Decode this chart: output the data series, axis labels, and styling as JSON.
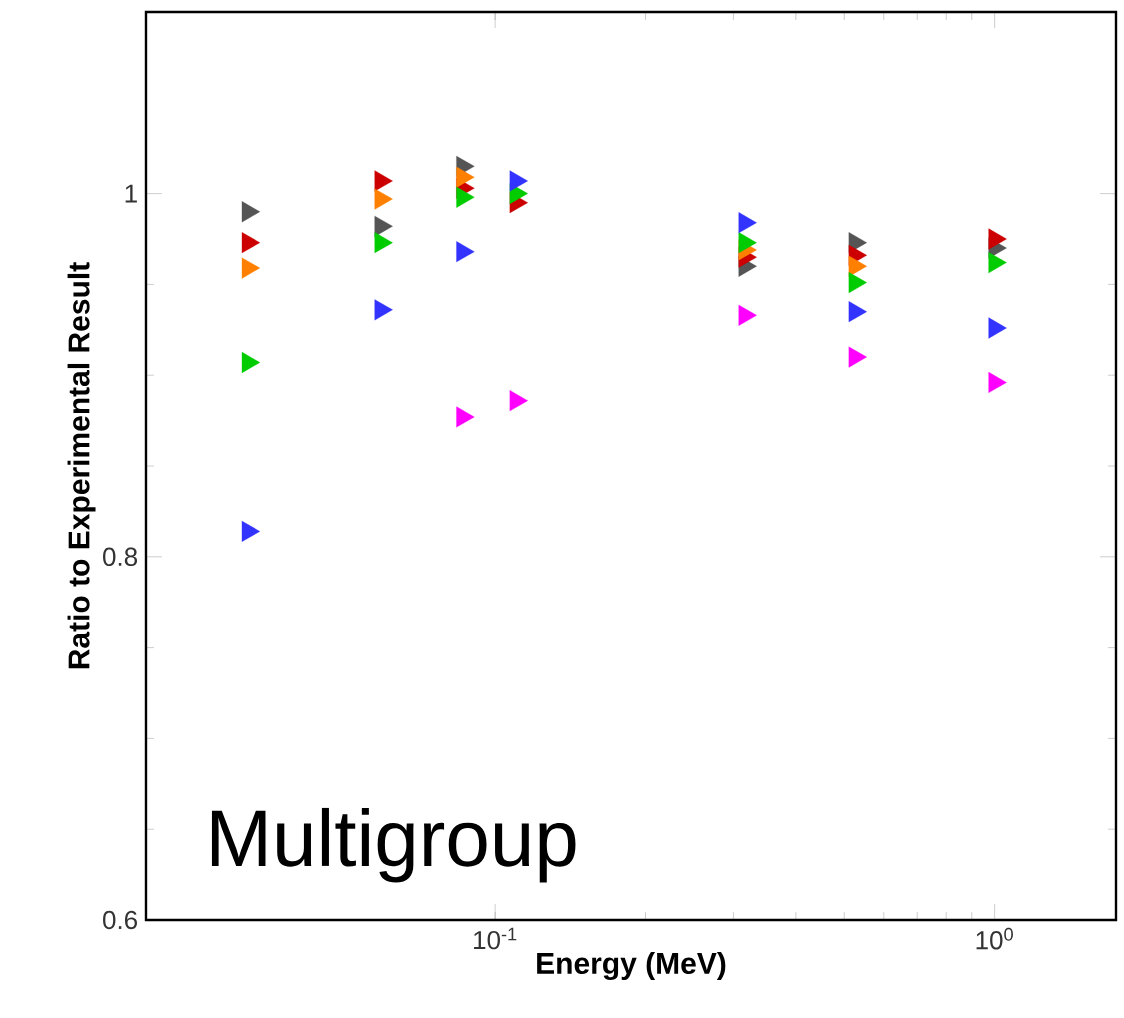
{
  "chart_data": {
    "type": "scatter",
    "xlabel": "Energy (MeV)",
    "ylabel": "Ratio to Experimental Result",
    "annotations": [
      "Multigroup"
    ],
    "log": "x",
    "marker": "triangle",
    "grid": false,
    "x": [
      0.032,
      0.059,
      0.086,
      0.11,
      0.316,
      0.525,
      1.0
    ],
    "xlim": [
      0.02,
      1.75
    ],
    "ylim": [
      0.6,
      1.1
    ],
    "xticks": [
      {
        "value": 0.1,
        "label": "10$^{-1}$"
      },
      {
        "value": 1,
        "label": "10$^{0}$"
      }
    ],
    "yticks": [
      0.6,
      0.8,
      1
    ],
    "series": [
      {
        "color": "#555555",
        "values": [
          0.99,
          0.982,
          1.015,
          null,
          0.96,
          0.973,
          0.97
        ]
      },
      {
        "color": "#cc0000",
        "values": [
          0.973,
          1.007,
          1.003,
          0.995,
          0.965,
          0.966,
          0.975
        ]
      },
      {
        "color": "#ff8000",
        "values": [
          0.959,
          0.997,
          1.009,
          null,
          0.969,
          0.96,
          null
        ]
      },
      {
        "color": "#00cc00",
        "values": [
          0.907,
          0.973,
          0.998,
          1.0,
          0.973,
          0.951,
          0.962
        ]
      },
      {
        "color": "#3333ff",
        "values": [
          0.814,
          0.936,
          0.968,
          1.007,
          0.984,
          0.935,
          0.926
        ]
      },
      {
        "color": "#ff00ff",
        "values": [
          null,
          null,
          0.877,
          0.886,
          0.933,
          0.91,
          0.896
        ]
      }
    ]
  }
}
